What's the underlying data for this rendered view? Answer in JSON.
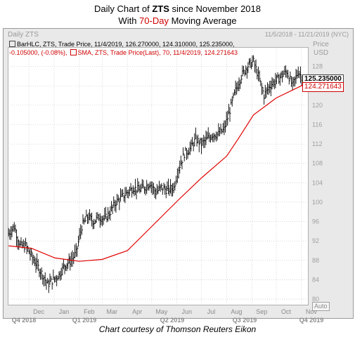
{
  "header": {
    "line1_prefix": "Daily Chart of ",
    "line1_ticker": "ZTS",
    "line1_suffix": " since November 2018",
    "line2_prefix": "With ",
    "line2_highlight": "70-Day",
    "line2_suffix": " Moving Average"
  },
  "panel": {
    "name": "Daily ZTS",
    "date_range": "11/5/2018 - 11/21/2019 (NYC)",
    "yaxis_title_1": "Price",
    "yaxis_title_2": "USD",
    "legend_bar": "BarHLC, ZTS, Trade Price, 11/4/2019, 126.270000, 124.310000, 125.235000,",
    "legend_bar_2": "-0.105000, (-0.08%),",
    "legend_sma": "SMA, ZTS, Trade Price(Last), 70, 11/4/2019, 124.271643",
    "price_tag_last": "125.235000",
    "price_tag_sma": "124.271643",
    "auto_label": "Auto"
  },
  "footer": "Chart courtesy of Thomson Reuters Eikon",
  "colors": {
    "bars": "#000000",
    "sma": "#e00000",
    "grid": "#bfbfbf",
    "price_tag_bg": "#ffffff"
  },
  "chart_data": {
    "type": "line",
    "title": "Daily Chart of ZTS since November 2018 With 70-Day Moving Average",
    "ylabel": "Price USD",
    "ylim": [
      79,
      132
    ],
    "yticks": [
      80,
      84,
      88,
      92,
      96,
      100,
      104,
      108,
      112,
      116,
      120,
      124,
      128
    ],
    "x_month_labels": [
      "Dec",
      "Jan",
      "Feb",
      "Mar",
      "Apr",
      "May",
      "Jun",
      "Jul",
      "Aug",
      "Sep",
      "Oct",
      "Nov"
    ],
    "x_quarter_labels": [
      "Q4 2018",
      "Q1 2019",
      "Q2 2019",
      "Q3 2019",
      "Q4 2019"
    ],
    "grid": true,
    "series": [
      {
        "name": "ZTS",
        "kind": "bar_hlc",
        "x": [
          "2018-11-06",
          "2018-11-13",
          "2018-11-20",
          "2018-11-27",
          "2018-12-04",
          "2018-12-11",
          "2018-12-18",
          "2018-12-24",
          "2018-12-31",
          "2019-01-07",
          "2019-01-14",
          "2019-01-22",
          "2019-01-28",
          "2019-02-04",
          "2019-02-11",
          "2019-02-19",
          "2019-02-25",
          "2019-03-04",
          "2019-03-11",
          "2019-03-18",
          "2019-03-25",
          "2019-04-01",
          "2019-04-08",
          "2019-04-15",
          "2019-04-22",
          "2019-04-29",
          "2019-05-06",
          "2019-05-13",
          "2019-05-20",
          "2019-05-28",
          "2019-06-03",
          "2019-06-10",
          "2019-06-17",
          "2019-06-24",
          "2019-07-01",
          "2019-07-08",
          "2019-07-15",
          "2019-07-22",
          "2019-07-29",
          "2019-08-05",
          "2019-08-12",
          "2019-08-19",
          "2019-08-26",
          "2019-09-03",
          "2019-09-09",
          "2019-09-16",
          "2019-09-23",
          "2019-09-30",
          "2019-10-07",
          "2019-10-14",
          "2019-10-21",
          "2019-10-28",
          "2019-11-04"
        ],
        "close": [
          93.5,
          95,
          91,
          91,
          89,
          87,
          85,
          83,
          84,
          85,
          87,
          88,
          89.5,
          95,
          97,
          96,
          97,
          96.5,
          98,
          100,
          101,
          102,
          103,
          102.5,
          103,
          104,
          102,
          103,
          102.5,
          103,
          107,
          110,
          111,
          113,
          112,
          113,
          114,
          114,
          115,
          119,
          123,
          126,
          128,
          129,
          126,
          122,
          124,
          125,
          126,
          127,
          124,
          127,
          125.235
        ]
      },
      {
        "name": "SMA 70",
        "kind": "line",
        "x": [
          "2018-11-06",
          "2018-12-04",
          "2019-01-02",
          "2019-02-01",
          "2019-03-01",
          "2019-04-01",
          "2019-05-01",
          "2019-06-03",
          "2019-07-01",
          "2019-08-01",
          "2019-08-15",
          "2019-09-03",
          "2019-10-01",
          "2019-11-04"
        ],
        "values": [
          91,
          90.5,
          88.5,
          87.8,
          88.2,
          90,
          95,
          100.5,
          105,
          109.5,
          113,
          118,
          121.5,
          124.27
        ]
      }
    ]
  }
}
